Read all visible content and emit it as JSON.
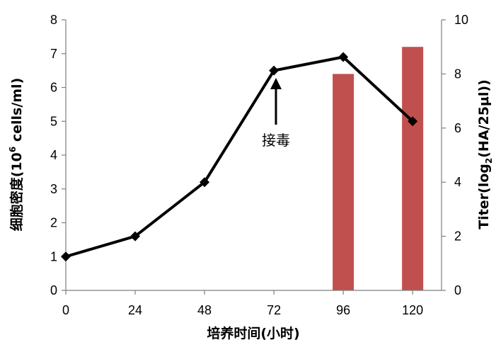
{
  "chart_data": {
    "type": "line",
    "title": "",
    "xlabel": "培养时间(小时)",
    "ylabel_left_main": "细胞密度(10",
    "ylabel_left_sup": "6",
    "ylabel_left_tail": " cells/ml)",
    "ylabel_right_main": "Titer(log",
    "ylabel_right_sub": "2",
    "ylabel_right_tail": "(HA/25μl))",
    "x": [
      0,
      24,
      48,
      72,
      96,
      120
    ],
    "x_tick_labels": [
      "0",
      "24",
      "48",
      "72",
      "96",
      "120"
    ],
    "xlim": [
      0,
      130
    ],
    "ylim_left": [
      0,
      8
    ],
    "y_left_ticks": [
      "0",
      "1",
      "2",
      "3",
      "4",
      "5",
      "6",
      "7",
      "8"
    ],
    "ylim_right": [
      0,
      10
    ],
    "y_right_ticks": [
      "0",
      "2",
      "4",
      "6",
      "8",
      "10"
    ],
    "series": [
      {
        "axis": "left",
        "type": "line",
        "x": [
          0,
          24,
          48,
          72,
          96,
          120
        ],
        "values": [
          1.0,
          1.6,
          3.2,
          6.5,
          6.9,
          5.0
        ],
        "color": "#000000",
        "marker": "diamond"
      },
      {
        "axis": "right",
        "type": "bar",
        "x": [
          96,
          120
        ],
        "values": [
          8,
          9
        ],
        "color": "#c0504d"
      }
    ],
    "annotations": [
      {
        "text": "接毒",
        "x": 72,
        "arrow": true
      }
    ],
    "grid": false,
    "legend": "none"
  }
}
